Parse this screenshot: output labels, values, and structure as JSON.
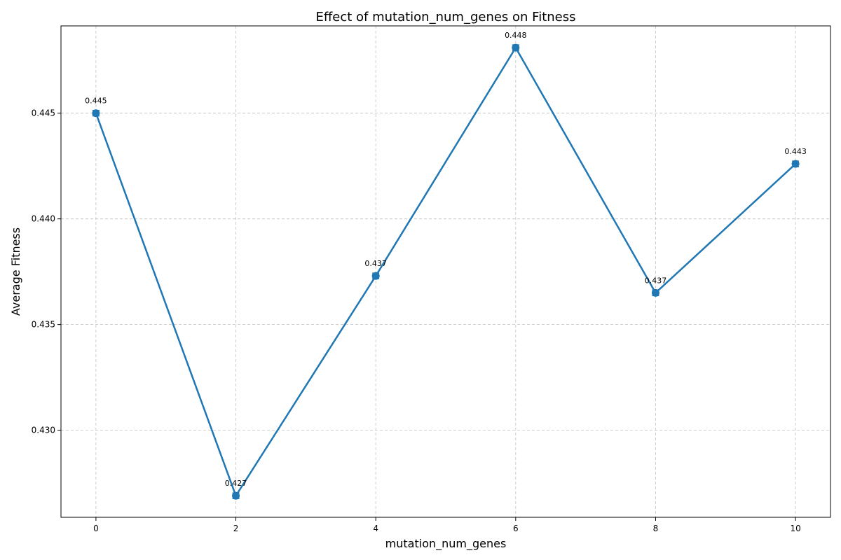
{
  "chart_data": {
    "type": "line",
    "title": "Effect of mutation_num_genes on Fitness",
    "xlabel": "mutation_num_genes",
    "ylabel": "Average Fitness",
    "x": [
      0,
      2,
      4,
      6,
      8,
      10
    ],
    "series": [
      {
        "values": [
          0.445,
          0.4269,
          0.4373,
          0.4481,
          0.4365,
          0.4426
        ],
        "data_labels": [
          "0.445",
          "0.427",
          "0.437",
          "0.448",
          "0.437",
          "0.443"
        ],
        "color": "#1f77b4",
        "marker": "circle",
        "error_bars": true
      }
    ],
    "xlim": [
      -0.5,
      10.5
    ],
    "ylim": [
      0.42588,
      0.44913
    ],
    "xticks": [
      0,
      2,
      4,
      6,
      8,
      10
    ],
    "xtick_labels": [
      "0",
      "2",
      "4",
      "6",
      "8",
      "10"
    ],
    "yticks": [
      0.43,
      0.435,
      0.44,
      0.445
    ],
    "ytick_labels": [
      "0.430",
      "0.435",
      "0.440",
      "0.445"
    ],
    "grid": true
  }
}
